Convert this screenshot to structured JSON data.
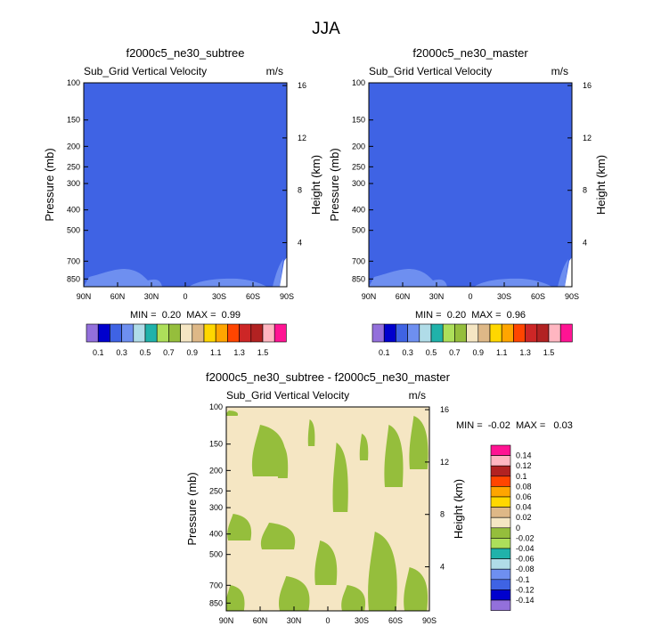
{
  "figure_title": "JJA",
  "colors": {
    "background_fill": "#3f63e4",
    "light_fill": "#6e8ff0",
    "diff_cream": "#f5e6c3",
    "diff_green": "#95be3c"
  },
  "chart_data": [
    {
      "type": "heatmap",
      "title": "f2000c5_ne30_subtree",
      "variable": "Sub_Grid Vertical Velocity",
      "units": "m/s",
      "ylabel": "Pressure (mb)",
      "ylabel_right": "Height (km)",
      "x_ticks": [
        "90N",
        "60N",
        "30N",
        "0",
        "30S",
        "60S",
        "90S"
      ],
      "x_range": [
        90,
        -90
      ],
      "pressure_ticks": [
        "100",
        "150",
        "200",
        "250",
        "300",
        "400",
        "500",
        "700",
        "850"
      ],
      "pressure_range": [
        100,
        925
      ],
      "height_ticks": [
        "16",
        "12",
        "8",
        "4"
      ],
      "stats": {
        "label": "MIN =  0.20  MAX =  0.99",
        "min": 0.2,
        "max": 0.99
      }
    },
    {
      "type": "heatmap",
      "title": "f2000c5_ne30_master",
      "variable": "Sub_Grid Vertical Velocity",
      "units": "m/s",
      "ylabel": "Pressure (mb)",
      "ylabel_right": "Height (km)",
      "x_ticks": [
        "90N",
        "60N",
        "30N",
        "0",
        "30S",
        "60S",
        "90S"
      ],
      "x_range": [
        90,
        -90
      ],
      "pressure_ticks": [
        "100",
        "150",
        "200",
        "250",
        "300",
        "400",
        "500",
        "700",
        "850"
      ],
      "pressure_range": [
        100,
        925
      ],
      "height_ticks": [
        "16",
        "12",
        "8",
        "4"
      ],
      "stats": {
        "label": "MIN =  0.20  MAX =  0.96",
        "min": 0.2,
        "max": 0.96
      }
    },
    {
      "type": "heatmap",
      "title": "f2000c5_ne30_subtree - f2000c5_ne30_master",
      "variable": "Sub_Grid Vertical Velocity",
      "units": "m/s",
      "ylabel": "Pressure (mb)",
      "ylabel_right": "Height (km)",
      "x_ticks": [
        "90N",
        "60N",
        "30N",
        "0",
        "30S",
        "60S",
        "90S"
      ],
      "x_range": [
        90,
        -90
      ],
      "pressure_ticks": [
        "100",
        "150",
        "200",
        "250",
        "300",
        "400",
        "500",
        "700",
        "850"
      ],
      "pressure_range": [
        100,
        925
      ],
      "height_ticks": [
        "16",
        "12",
        "8",
        "4"
      ],
      "stats": {
        "label": "MIN =  -0.02  MAX =   0.03",
        "min": -0.02,
        "max": 0.03
      }
    }
  ],
  "colorbar_top": {
    "colors": [
      "#9370db",
      "#0000cd",
      "#3f63e4",
      "#6e8ff0",
      "#b0dce8",
      "#20b2aa",
      "#addf5a",
      "#95be3c",
      "#f5e6c3",
      "#deb887",
      "#ffd700",
      "#ffa500",
      "#ff4500",
      "#cd2626",
      "#b22222",
      "#ffb6c1",
      "#ff1493"
    ],
    "labels": [
      "0.1",
      "0.3",
      "0.5",
      "0.7",
      "0.9",
      "1.1",
      "1.3",
      "1.5"
    ]
  },
  "colorbar_diff": {
    "colors_top_to_bottom": [
      "#ff1493",
      "#ffb6c1",
      "#b22222",
      "#ff4500",
      "#ffa500",
      "#ffd700",
      "#deb887",
      "#f5e6c3",
      "#95be3c",
      "#addf5a",
      "#20b2aa",
      "#b0dce8",
      "#6e8ff0",
      "#3f63e4",
      "#0000cd",
      "#9370db"
    ],
    "labels": [
      "0.14",
      "0.12",
      "0.1",
      "0.08",
      "0.06",
      "0.04",
      "0.02",
      "0",
      "-0.02",
      "-0.04",
      "-0.06",
      "-0.08",
      "-0.1",
      "-0.12",
      "-0.14"
    ]
  }
}
